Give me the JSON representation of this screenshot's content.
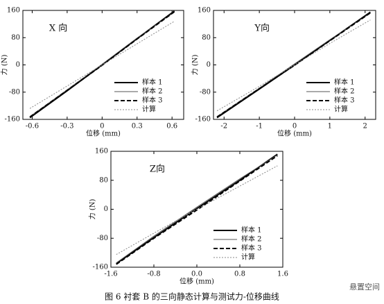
{
  "chart_data": [
    {
      "type": "line",
      "title": "X 向",
      "xlabel": "位移 (mm)",
      "ylabel": "力 (N)",
      "x": [
        -0.62,
        -0.3,
        0,
        0.3,
        0.62
      ],
      "series": [
        {
          "name": "样本 1",
          "color": "#000000",
          "line_style": "solid",
          "line_width": 2,
          "values": [
            -155,
            -76,
            0,
            77,
            158
          ]
        },
        {
          "name": "样本 2",
          "color": "#555555",
          "line_style": "solid",
          "line_width": 1,
          "values": [
            -152,
            -73,
            2,
            79,
            155
          ]
        },
        {
          "name": "样本 3",
          "color": "#000000",
          "line_style": "dashed",
          "line_width": 2,
          "values": [
            -153,
            -75,
            -1,
            76,
            156
          ]
        },
        {
          "name": "计算",
          "color": "#888888",
          "line_style": "dotted",
          "line_width": 1,
          "values": [
            -128,
            -62,
            0,
            62,
            128
          ]
        }
      ],
      "xlim": [
        -0.68,
        0.7
      ],
      "xticks": [
        -0.6,
        -0.3,
        0,
        0.3,
        0.6
      ],
      "ylim": [
        -160,
        160
      ],
      "yticks": [
        -160,
        -80,
        0,
        80,
        160
      ],
      "legend": "lower right"
    },
    {
      "type": "line",
      "title": "Y向",
      "xlabel": "位移 (mm)",
      "ylabel": "力 (N)",
      "x": [
        -2.2,
        -1,
        0,
        1,
        2.15
      ],
      "series": [
        {
          "name": "样本 1",
          "color": "#000000",
          "line_style": "solid",
          "line_width": 2,
          "values": [
            -155,
            -71,
            0,
            72,
            155
          ]
        },
        {
          "name": "样本 2",
          "color": "#555555",
          "line_style": "solid",
          "line_width": 1,
          "values": [
            -152,
            -68,
            3,
            74,
            152
          ]
        },
        {
          "name": "样本 3",
          "color": "#000000",
          "line_style": "dashed",
          "line_width": 2,
          "values": [
            -153,
            -70,
            -1,
            71,
            153
          ]
        },
        {
          "name": "计算",
          "color": "#888888",
          "line_style": "dotted",
          "line_width": 1,
          "values": [
            -135,
            -63,
            0,
            63,
            132
          ]
        }
      ],
      "xlim": [
        -2.3,
        2.3
      ],
      "xticks": [
        -2,
        -1,
        0,
        1,
        2
      ],
      "ylim": [
        -160,
        160
      ],
      "yticks": [
        -160,
        -80,
        0,
        80,
        160
      ],
      "legend": "lower right"
    },
    {
      "type": "line",
      "title": "Z向",
      "xlabel": "位移 (mm)",
      "ylabel": "力 (N)",
      "x": [
        -1.5,
        -0.8,
        0,
        0.8,
        1.5
      ],
      "series": [
        {
          "name": "样本 1",
          "color": "#000000",
          "line_style": "solid",
          "line_width": 2,
          "values": [
            -150,
            -78,
            2,
            80,
            152
          ]
        },
        {
          "name": "样本 2",
          "color": "#555555",
          "line_style": "solid",
          "line_width": 1,
          "values": [
            -148,
            -74,
            6,
            84,
            150
          ]
        },
        {
          "name": "样本 3",
          "color": "#000000",
          "line_style": "dashed",
          "line_width": 2,
          "values": [
            -152,
            -80,
            -2,
            78,
            148
          ]
        },
        {
          "name": "计算",
          "color": "#888888",
          "line_style": "dotted",
          "line_width": 1,
          "values": [
            -125,
            -66,
            0,
            64,
            120
          ]
        }
      ],
      "xlim": [
        -1.6,
        1.6
      ],
      "xticks": [
        -1.6,
        -0.8,
        {
          "value": 0,
          "label": "0.0"
        },
        0.8,
        1.6
      ],
      "ylim": [
        -160,
        160
      ],
      "yticks": [
        -160,
        -80,
        0,
        80,
        160
      ],
      "legend": "lower right"
    }
  ],
  "caption": "图 6 衬套 B 的三向静态计算与测试力-位移曲线",
  "watermark": "悬置空间"
}
